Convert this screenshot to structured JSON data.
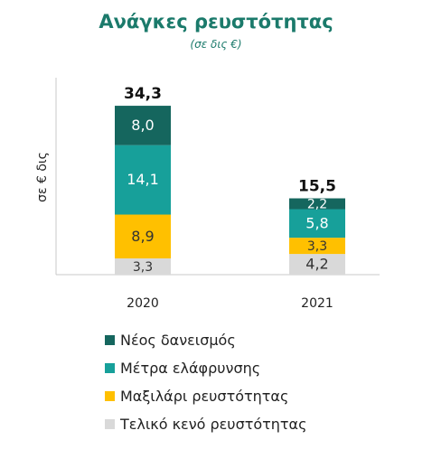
{
  "title": "Ανάγκες ρευστότητας",
  "subtitle": "(σε δις €)",
  "chart_data": {
    "type": "bar",
    "stacked": true,
    "title": "Ανάγκες ρευστότητας",
    "subtitle": "(σε δις €)",
    "ylabel": "σε € δις",
    "xlabel": "",
    "categories": [
      "2020",
      "2021"
    ],
    "totals": [
      "34,3",
      "15,5"
    ],
    "ylim": [
      0,
      40
    ],
    "grid": false,
    "legend_position": "bottom",
    "series": [
      {
        "name": "Τελικό κενό ρευστότητας",
        "color": "#d9d9d9",
        "values": [
          3.3,
          4.2
        ],
        "labels": [
          "3,3",
          "4,2"
        ],
        "label_color": "#333333"
      },
      {
        "name": "Μαξιλάρι ρευστότητας",
        "color": "#ffc000",
        "values": [
          8.9,
          3.3
        ],
        "labels": [
          "8,9",
          "3,3"
        ],
        "label_color": "#333333"
      },
      {
        "name": "Μέτρα ελάφρυνσης",
        "color": "#17a09a",
        "values": [
          14.1,
          5.8
        ],
        "labels": [
          "14,1",
          "5,8"
        ],
        "label_color": "#ffffff"
      },
      {
        "name": "Νέος δανεισμός",
        "color": "#15665e",
        "values": [
          8.0,
          2.2
        ],
        "labels": [
          "8,0",
          "2,2"
        ],
        "label_color": "#ffffff"
      }
    ]
  }
}
